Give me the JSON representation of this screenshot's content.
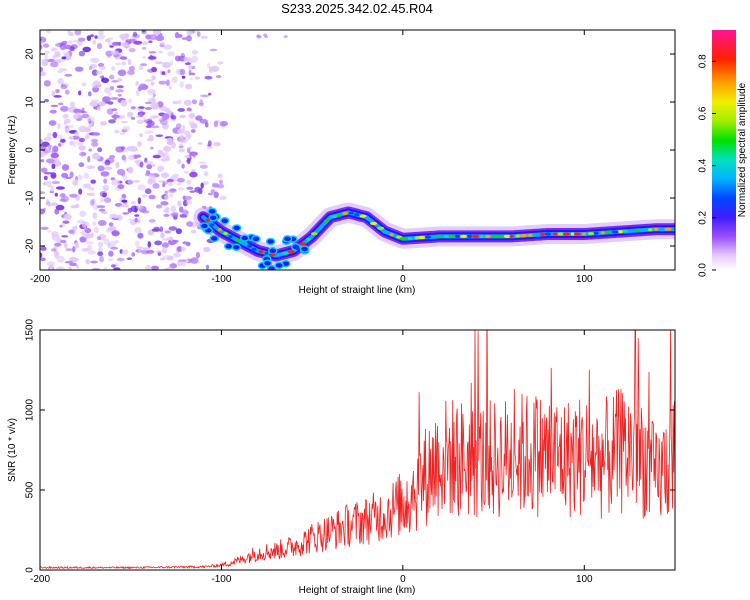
{
  "title": "S233.2025.342.02.45.R04",
  "chart_data": [
    {
      "type": "heatmap",
      "name": "spectrogram",
      "xlabel": "Height of straight line (km)",
      "ylabel": "Frequency (Hz)",
      "xlim": [
        -200,
        150
      ],
      "ylim": [
        -25,
        25
      ],
      "xticks": [
        -200,
        -100,
        0,
        100
      ],
      "yticks": [
        -20,
        -10,
        0,
        10,
        20
      ],
      "colorbar": {
        "label": "Normalized spectral amplitude",
        "range": [
          0,
          0.92
        ],
        "ticks": [
          0.0,
          0.2,
          0.4,
          0.6,
          0.8
        ]
      },
      "ridge": {
        "x": [
          -110,
          -100,
          -90,
          -80,
          -70,
          -60,
          -50,
          -40,
          -30,
          -20,
          -10,
          0,
          20,
          40,
          60,
          80,
          100,
          120,
          140,
          150
        ],
        "freq": [
          -14,
          -17,
          -19,
          -21,
          -22,
          -21,
          -18,
          -14,
          -13,
          -14,
          -17,
          -18.5,
          -18,
          -18,
          -18,
          -17.5,
          -17.5,
          -17,
          -16.5,
          -16.5
        ]
      },
      "noise_region": {
        "x_from": -200,
        "x_to": -95,
        "freq_from": -25,
        "freq_to": 25
      }
    },
    {
      "type": "line",
      "name": "snr",
      "xlabel": "Height of straight line (km)",
      "ylabel": "SNR (10 * v/v)",
      "xlim": [
        -200,
        150
      ],
      "ylim": [
        0,
        1500
      ],
      "xticks": [
        -200,
        -100,
        0,
        100
      ],
      "yticks": [
        0,
        500,
        1000,
        1500
      ],
      "series": [
        {
          "name": "SNR",
          "color": "#ee2222",
          "envelope_x": [
            -200,
            -150,
            -110,
            -100,
            -90,
            -80,
            -70,
            -60,
            -50,
            -40,
            -30,
            -20,
            -10,
            0,
            10,
            20,
            30,
            40,
            50,
            60,
            70,
            80,
            90,
            100,
            110,
            120,
            130,
            140,
            150
          ],
          "envelope_y": [
            15,
            15,
            20,
            30,
            60,
            110,
            120,
            150,
            200,
            240,
            280,
            310,
            350,
            420,
            550,
            700,
            700,
            680,
            690,
            710,
            730,
            720,
            700,
            720,
            690,
            740,
            760,
            560,
            750
          ]
        }
      ]
    }
  ]
}
